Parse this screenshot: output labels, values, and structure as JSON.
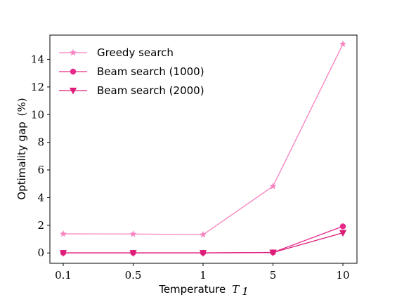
{
  "chart_data": {
    "type": "line",
    "categories": [
      "0.1",
      "0.5",
      "1",
      "5",
      "10"
    ],
    "xlabel": "Temperature",
    "xlabel_symbol": "T",
    "xlabel_subscript": "1",
    "ylabel": "Optimality gap",
    "ylabel_unit": "(%)",
    "yticks": [
      "0",
      "2",
      "4",
      "6",
      "8",
      "10",
      "12",
      "14"
    ],
    "ylim": [
      -0.75,
      15.75
    ],
    "grid": false,
    "legend_position": "top-left",
    "series": [
      {
        "name": "Greedy search",
        "marker": "star",
        "color": "#f781bf",
        "values": [
          1.38,
          1.37,
          1.32,
          4.82,
          15.1
        ]
      },
      {
        "name": "Beam search (1000)",
        "marker": "circle",
        "color": "#e7298a",
        "values": [
          0.01,
          0.01,
          0.01,
          0.04,
          1.92
        ]
      },
      {
        "name": "Beam search (2000)",
        "marker": "triangle-down",
        "color": "#dd1c77",
        "values": [
          0.0,
          0.0,
          0.0,
          0.03,
          1.45
        ]
      }
    ]
  }
}
